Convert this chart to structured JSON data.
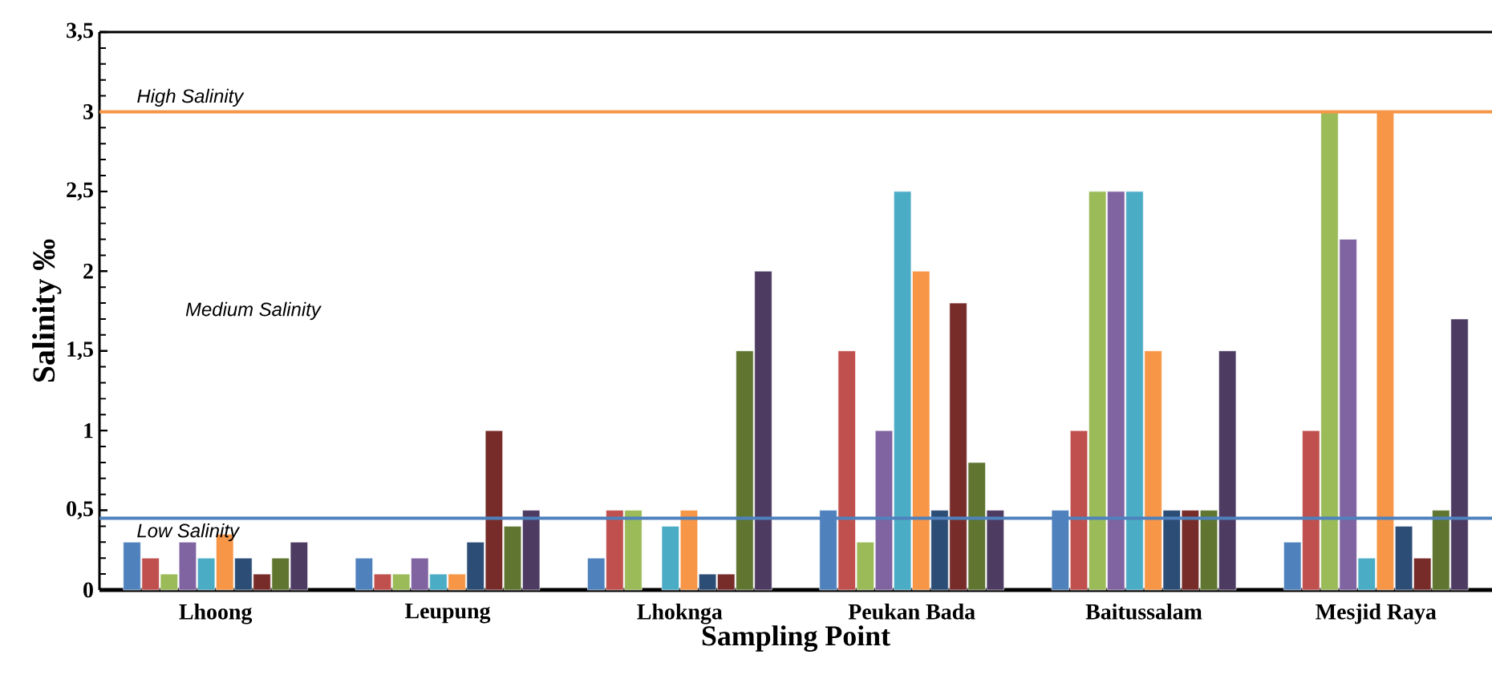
{
  "chart_data": {
    "type": "bar",
    "xlabel": "Sampling Point",
    "ylabel": "Salinity ‰",
    "categories": [
      "Lhoong",
      "Leupung",
      "Lhoknga",
      "Peukan Bada",
      "Baitussalam",
      "Mesjid Raya"
    ],
    "series": [
      {
        "color": "#4f81bd",
        "values": [
          0.3,
          0.2,
          0.2,
          0.5,
          0.5,
          0.3
        ]
      },
      {
        "color": "#c0504d",
        "values": [
          0.2,
          0.1,
          0.5,
          1.5,
          1,
          1
        ]
      },
      {
        "color": "#9bbb59",
        "values": [
          0.1,
          0.1,
          0.5,
          0.3,
          2.5,
          3
        ]
      },
      {
        "color": "#8064a2",
        "values": [
          0.3,
          0.2,
          null,
          1,
          2.5,
          2.2
        ]
      },
      {
        "color": "#4bacc6",
        "values": [
          0.2,
          0.1,
          0.4,
          2.5,
          2.5,
          0.2
        ]
      },
      {
        "color": "#f79646",
        "values": [
          0.35,
          0.1,
          0.5,
          2,
          1.5,
          3
        ]
      },
      {
        "color": "#2c4d75",
        "values": [
          0.2,
          0.3,
          0.1,
          0.5,
          0.5,
          0.4
        ]
      },
      {
        "color": "#772c2a",
        "values": [
          0.1,
          1,
          0.1,
          1.8,
          0.5,
          0.2
        ]
      },
      {
        "color": "#5f7530",
        "values": [
          0.2,
          0.4,
          1.5,
          0.8,
          0.5,
          0.5
        ]
      },
      {
        "color": "#4d3b62",
        "values": [
          0.3,
          0.5,
          2,
          0.5,
          1.5,
          1.7
        ]
      }
    ],
    "ylim": [
      0,
      3.5
    ],
    "yticks": [
      0,
      {
        "value": 0.5,
        "label": "0,5"
      },
      1,
      {
        "value": 1.5,
        "label": "1,5"
      },
      2,
      {
        "value": 2.5,
        "label": "2,5"
      },
      3,
      {
        "value": 3.5,
        "label": "3,5"
      }
    ],
    "ref_lines": [
      {
        "axis": "y",
        "value": 3,
        "label": "High Salinity",
        "color": "#f79646"
      },
      {
        "axis": "y",
        "value": 0.45,
        "label": "Low Salinity",
        "color": "#4f81bd"
      }
    ],
    "annotations": [
      "Medium Salinity"
    ],
    "grid": false
  }
}
